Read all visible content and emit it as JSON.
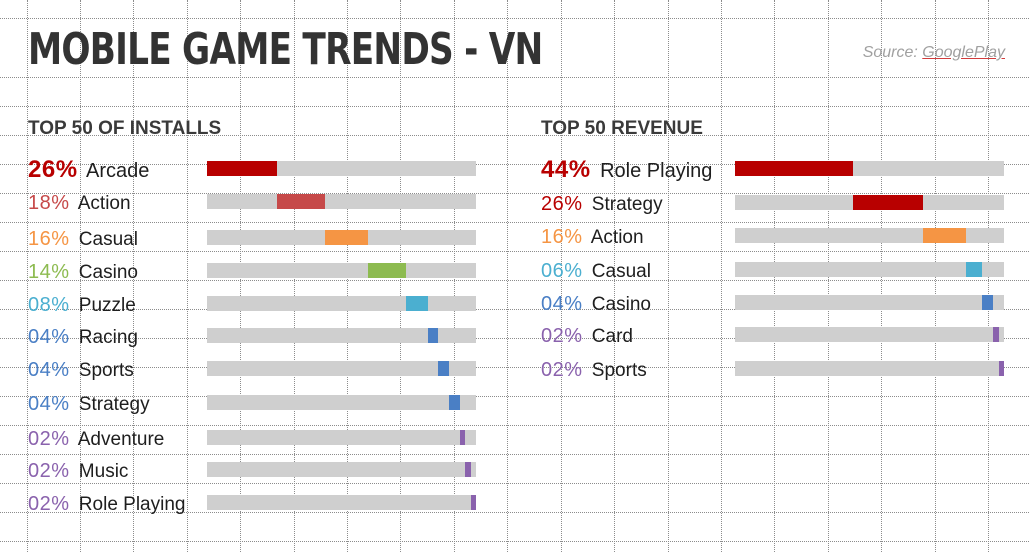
{
  "header": {
    "title": "MOBILE GAME TRENDS - VN",
    "source_prefix": "Source: ",
    "source_link": "GooglePlay"
  },
  "colors": {
    "26": "#b80000",
    "18": "#c64949",
    "16": "#f59544",
    "14": "#8dbb50",
    "08": "#4bafd0",
    "04": "#4a7fc5",
    "02": "#8a62ad",
    "44": "#b80000",
    "06": "#4bafd0"
  },
  "chart_data": [
    {
      "type": "bar",
      "title": "TOP 50 OF INSTALLS",
      "categories": [
        "Arcade",
        "Action",
        "Casual",
        "Casino",
        "Puzzle",
        "Racing",
        "Sports",
        "Strategy",
        "Adventure",
        "Music",
        "Role Playing"
      ],
      "labels": [
        "26%",
        "18%",
        "16%",
        "14%",
        "08%",
        "04%",
        "04%",
        "04%",
        "02%",
        "02%",
        "02%"
      ],
      "values": [
        26,
        18,
        16,
        14,
        8,
        4,
        4,
        4,
        2,
        2,
        2
      ]
    },
    {
      "type": "bar",
      "title": "TOP 50 REVENUE",
      "categories": [
        "Role Playing",
        "Strategy",
        "Action",
        "Casual",
        "Casino",
        "Card",
        "Sports"
      ],
      "labels": [
        "44%",
        "26%",
        "16%",
        "06%",
        "04%",
        "02%",
        "02%"
      ],
      "values": [
        44,
        26,
        16,
        6,
        4,
        2,
        2
      ]
    }
  ]
}
